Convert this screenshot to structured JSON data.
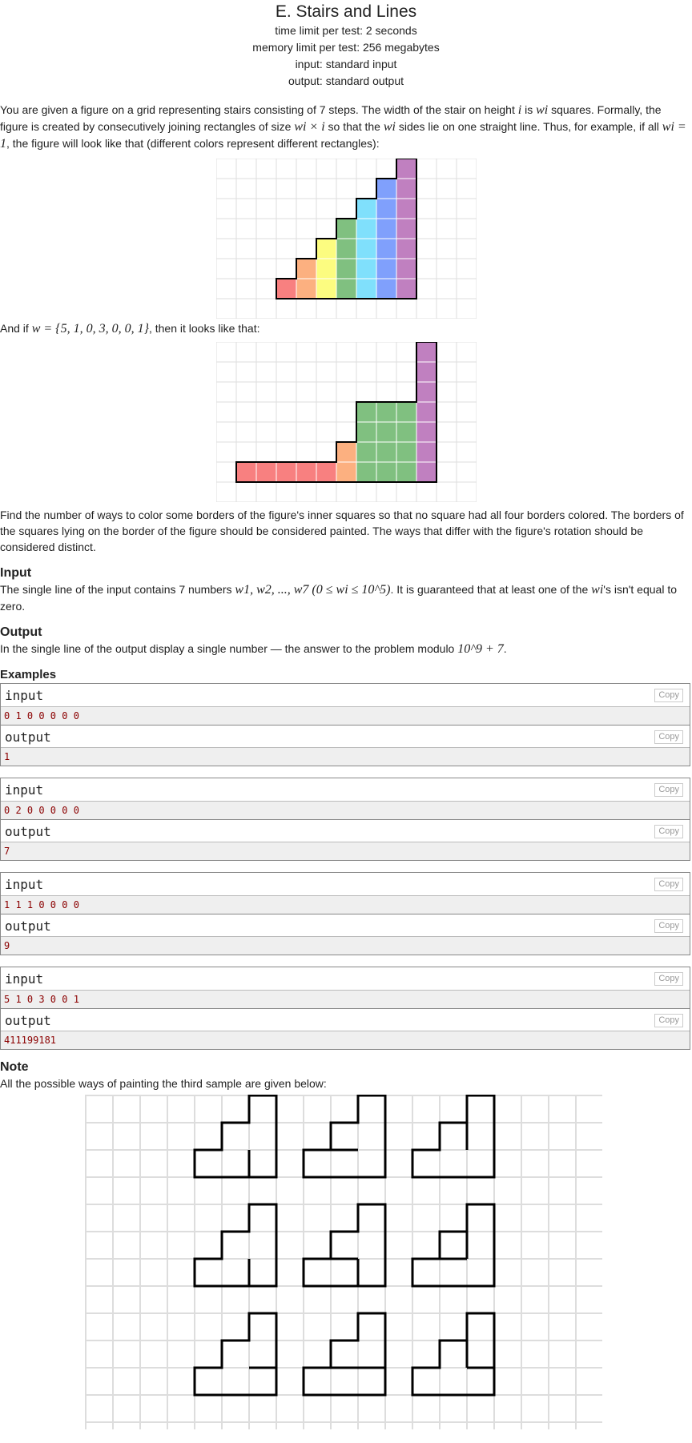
{
  "header": {
    "title": "E. Stairs and Lines",
    "time_limit": "time limit per test: 2 seconds",
    "memory_limit": "memory limit per test: 256 megabytes",
    "input": "input: standard input",
    "output": "output: standard output"
  },
  "statement": {
    "p1_a": "You are given a figure on a grid representing stairs consisting of 7 steps. The width of the stair on height ",
    "p1_i": "i",
    "p1_b": " is ",
    "p1_wi": "wi",
    "p1_c": " squares. Formally, the figure is created by consecutively joining rectangles of size ",
    "p1_size": "wi × i",
    "p1_d": " so that the ",
    "p1_wi2": "wi",
    "p1_e": " sides lie on one straight line. Thus, for example, if all ",
    "p1_eq": "wi = 1",
    "p1_f": ", the figure will look like that (different colors represent different rectangles):",
    "p2_a": "And if ",
    "p2_w": "w = {5, 1, 0, 3, 0, 0, 1}",
    "p2_b": ", then it looks like that:",
    "p3": "Find the number of ways to color some borders of the figure's inner squares so that no square had all four borders colored. The borders of the squares lying on the border of the figure should be considered painted. The ways that differ with the figure's rotation should be considered distinct."
  },
  "input_section": {
    "title": "Input",
    "text_a": "The single line of the input contains 7 numbers ",
    "text_math": "w1, w2, ..., w7 (0 ≤ wi ≤ 10^5)",
    "text_b": ". It is guaranteed that at least one of the ",
    "text_wi": "wi",
    "text_c": "'s isn't equal to zero."
  },
  "output_section": {
    "title": "Output",
    "text_a": "In the single line of the output display a single number — the answer to the problem modulo ",
    "text_math": "10^9 + 7",
    "text_b": "."
  },
  "examples_title": "Examples",
  "examples": [
    {
      "input_label": "input",
      "output_label": "output",
      "copy": "Copy",
      "input": "0 1 0 0 0 0 0",
      "output": "1"
    },
    {
      "input_label": "input",
      "output_label": "output",
      "copy": "Copy",
      "input": "0 2 0 0 0 0 0",
      "output": "7"
    },
    {
      "input_label": "input",
      "output_label": "output",
      "copy": "Copy",
      "input": "1 1 1 0 0 0 0",
      "output": "9"
    },
    {
      "input_label": "input",
      "output_label": "output",
      "copy": "Copy",
      "input": "5 1 0 3 0 0 1",
      "output": "411199181"
    }
  ],
  "note": {
    "title": "Note",
    "text": "All the possible ways of painting the third sample are given below:"
  },
  "colors": {
    "step1": "#f88080",
    "step2": "#fcb080",
    "step3": "#fcfc80",
    "step4": "#80c080",
    "step5": "#80e0fc",
    "step6": "#80a0fc",
    "step7": "#c080c0",
    "grid": "#dddddd"
  }
}
